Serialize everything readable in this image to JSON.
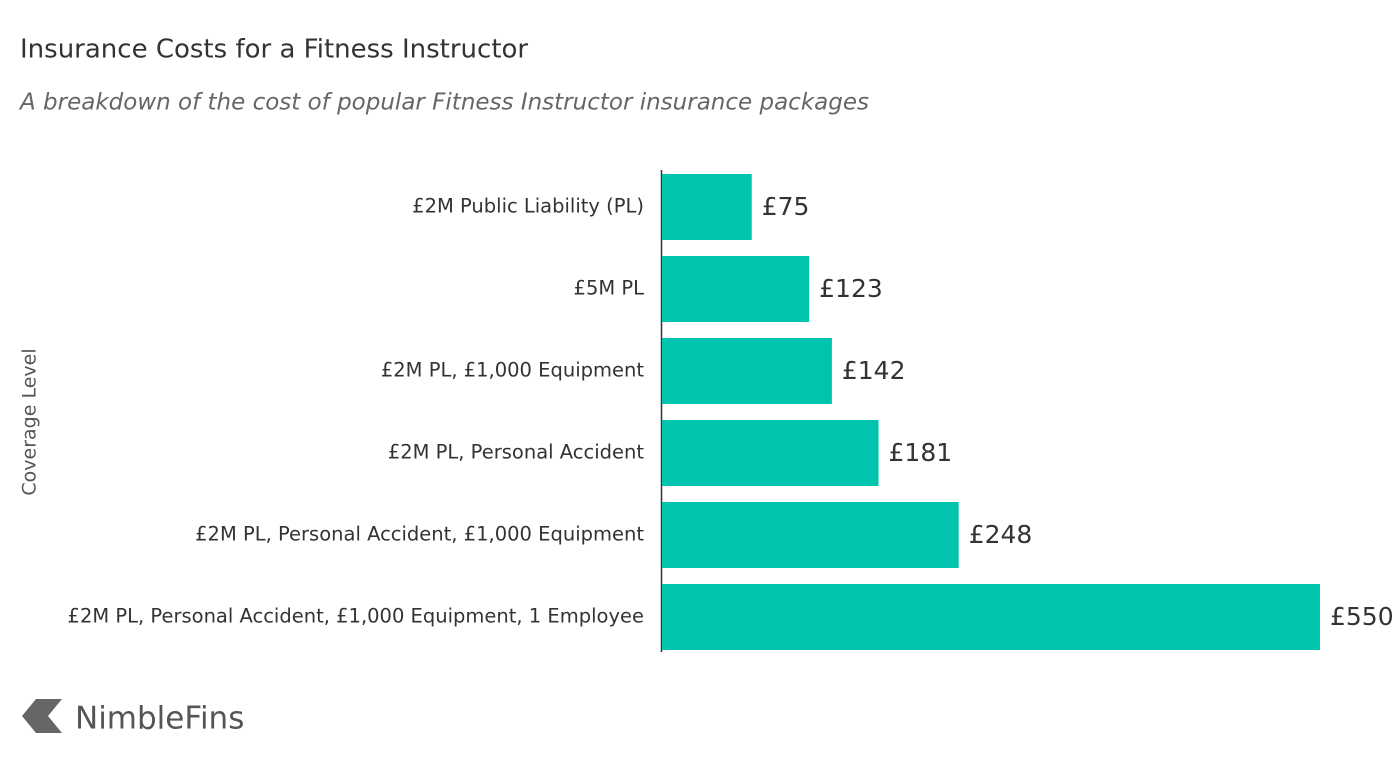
{
  "chart_data": {
    "type": "hbar",
    "title": "Insurance Costs for a Fitness Instructor",
    "subtitle": "A breakdown of the cost of popular Fitness Instructor insurance packages",
    "y_label": "Coverage Level",
    "categories": [
      "£2M Public Liability (PL)",
      "£5M PL",
      "£2M PL, £1,000 Equipment",
      "£2M PL, Personal Accident",
      "£2M PL, Personal Accident, £1,000 Equipment",
      "£2M PL, Personal Accident, £1,000 Equipment, 1 Employee"
    ],
    "values": [
      75,
      123,
      142,
      181,
      248,
      550
    ],
    "value_labels": [
      "£75",
      "£123",
      "£142",
      "£181",
      "£248",
      "£550"
    ],
    "color": "#00c4ad"
  },
  "logo": "NimbleFins"
}
